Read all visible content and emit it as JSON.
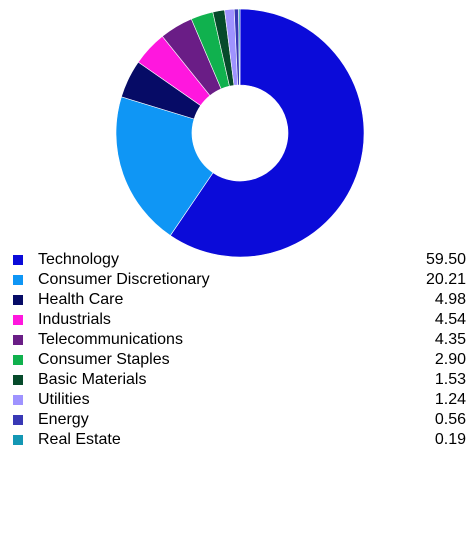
{
  "chart_data": {
    "type": "pie",
    "categories": [
      "Technology",
      "Consumer Discretionary",
      "Health Care",
      "Industrials",
      "Telecommunications",
      "Consumer Staples",
      "Basic Materials",
      "Utilities",
      "Energy",
      "Real Estate"
    ],
    "values": [
      59.5,
      20.21,
      4.98,
      4.54,
      4.35,
      2.9,
      1.53,
      1.24,
      0.56,
      0.19
    ],
    "value_labels": [
      "59.50",
      "20.21",
      "4.98",
      "4.54",
      "4.35",
      "2.90",
      "1.53",
      "1.24",
      "0.56",
      "0.19"
    ],
    "colors": [
      "#0b0bd9",
      "#0f96f5",
      "#060b66",
      "#ff17de",
      "#6a1d86",
      "#10b14e",
      "#064a2b",
      "#9f93ff",
      "#3838b5",
      "#1497b4"
    ],
    "title": "",
    "legend": "bottom"
  }
}
